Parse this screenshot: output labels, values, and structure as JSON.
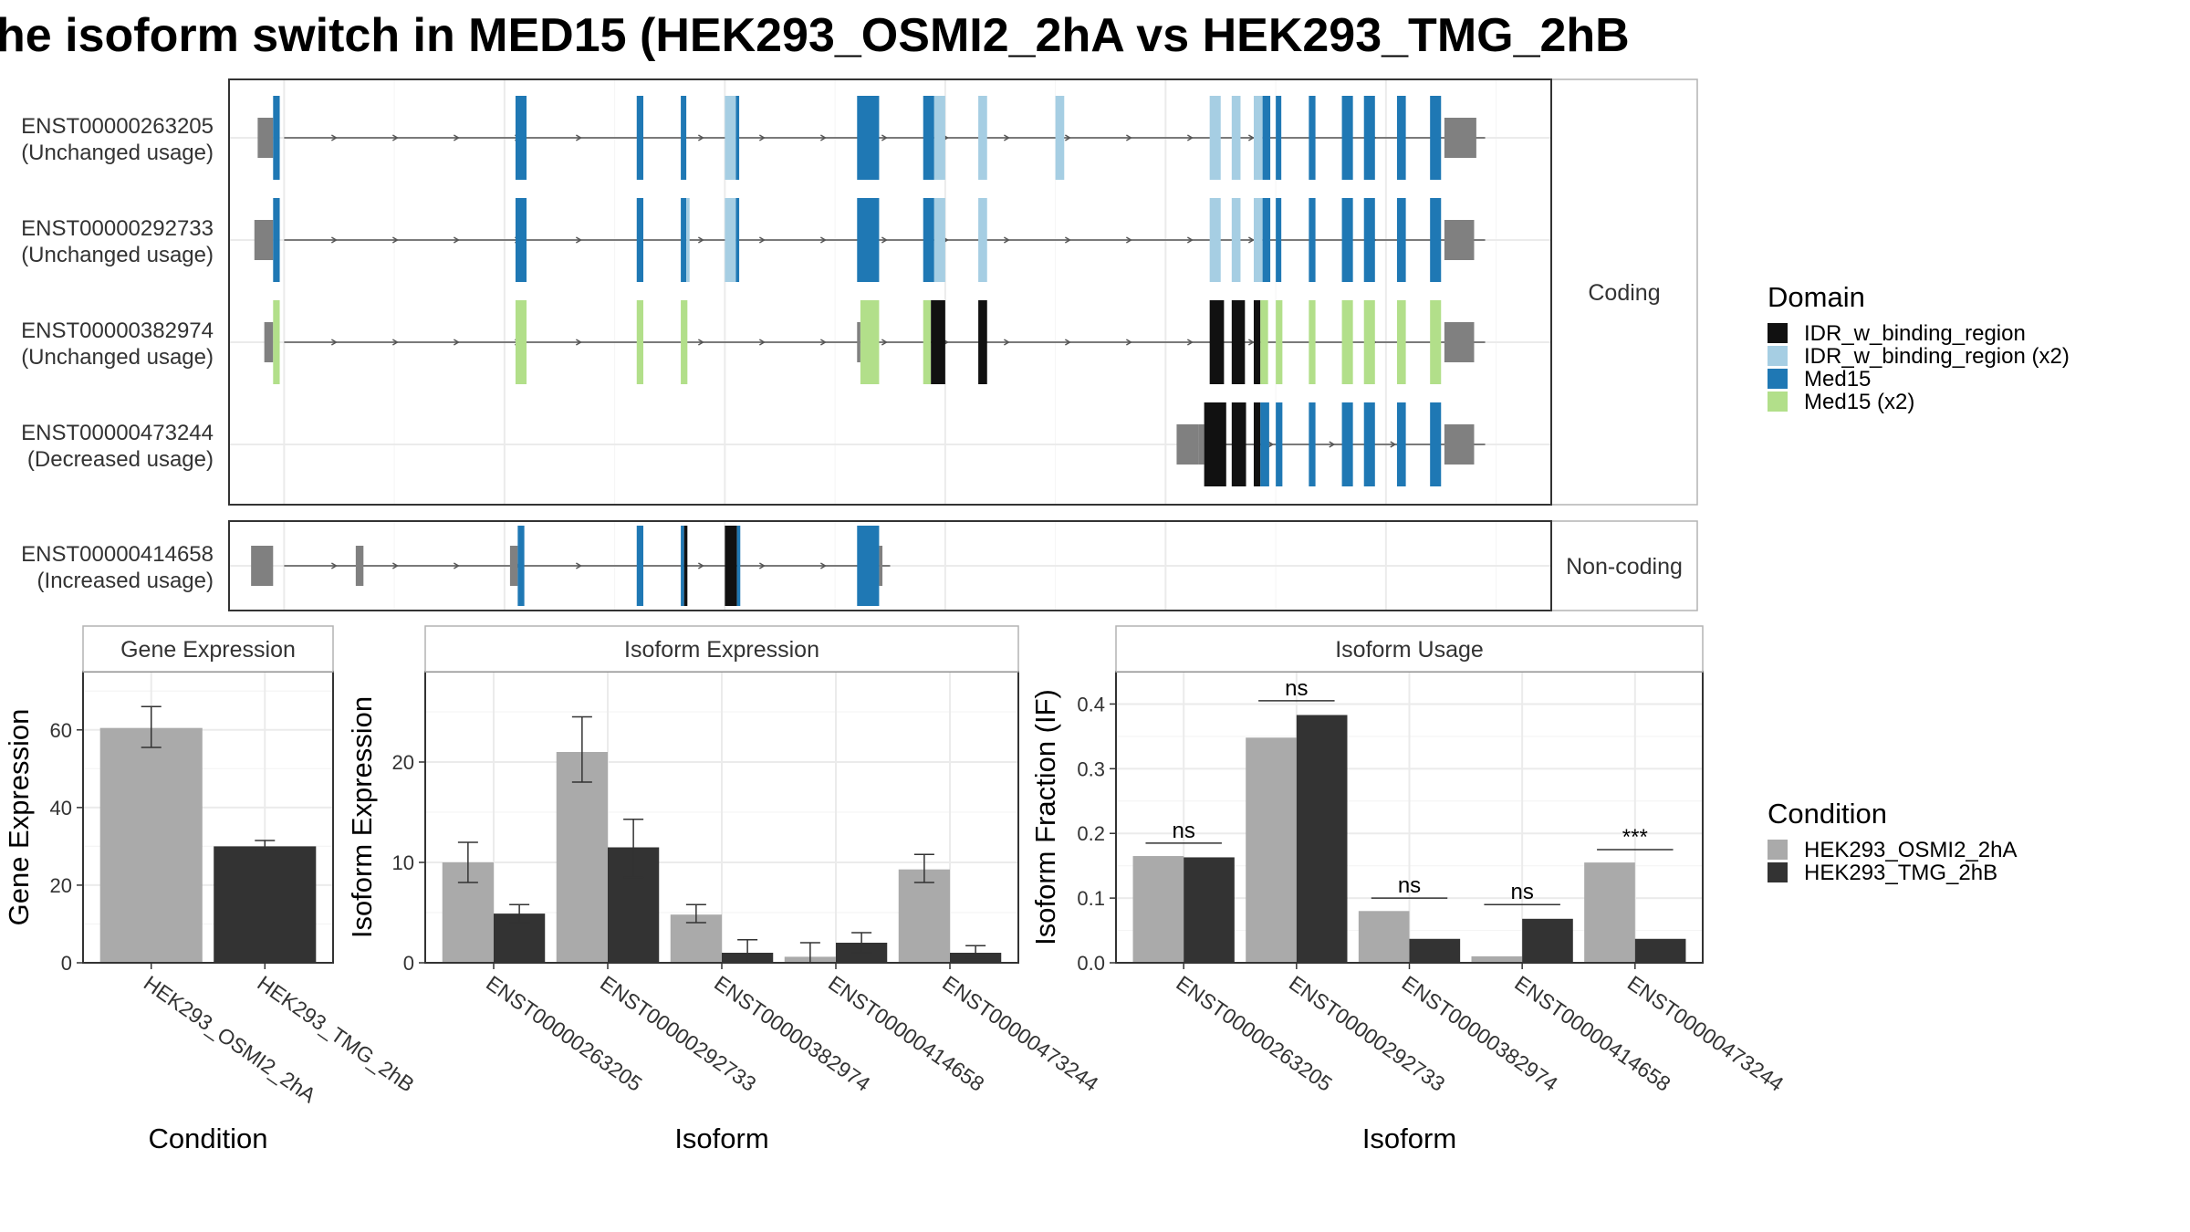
{
  "title": "he isoform switch in MED15 (HEK293_OSMI2_2hA vs HEK293_TMG_2hB",
  "colors": {
    "background": "#ffffff",
    "panel_border": "#333333",
    "strip_border": "#b3b3b3",
    "grid_major": "#ebebeb",
    "grid_minor": "#f5f5f5",
    "text": "#333333",
    "intron": "#555555",
    "utr": "#808080",
    "domain_IDR": "#111111",
    "domain_IDR_x2": "#a6cee3",
    "domain_Med15": "#1f78b4",
    "domain_Med15_x2": "#b2df8a",
    "cond_A": "#aaaaaa",
    "cond_B": "#333333",
    "error_bar": "#333333"
  },
  "structure": {
    "strip_coding": "Coding",
    "strip_noncoding": "Non-coding",
    "coding_transcripts": [
      {
        "id": "ENST00000263205",
        "usage": "(Unchanged usage)",
        "span": [
          3,
          112
        ],
        "utrs": [
          [
            0.6,
            2.0
          ],
          [
            108.3,
            111.2
          ]
        ],
        "exons": [
          [
            2.0,
            2.6,
            "Med15"
          ],
          [
            24.0,
            25.0,
            "Med15"
          ],
          [
            35.0,
            35.6,
            "Med15"
          ],
          [
            39.0,
            39.5,
            "Med15"
          ],
          [
            43.0,
            44.0,
            "IDR_x2"
          ],
          [
            44.0,
            44.3,
            "Med15"
          ],
          [
            55.0,
            57.0,
            "Med15"
          ],
          [
            61.0,
            62.0,
            "Med15"
          ],
          [
            62.0,
            63.0,
            "IDR_x2"
          ],
          [
            66.0,
            66.8,
            "IDR_x2"
          ],
          [
            73.0,
            73.8,
            "IDR_x2"
          ],
          [
            87.0,
            88.0,
            "IDR_x2"
          ],
          [
            89.0,
            89.8,
            "IDR_x2"
          ],
          [
            91.0,
            91.8,
            "IDR_x2"
          ],
          [
            91.8,
            92.5,
            "Med15"
          ],
          [
            93.0,
            93.5,
            "Med15"
          ],
          [
            96.0,
            96.6,
            "Med15"
          ],
          [
            99.0,
            100.0,
            "Med15"
          ],
          [
            101.0,
            102.0,
            "Med15"
          ],
          [
            104.0,
            104.8,
            "Med15"
          ],
          [
            107.0,
            108.0,
            "Med15"
          ]
        ]
      },
      {
        "id": "ENST00000292733",
        "usage": "(Unchanged usage)",
        "span": [
          3,
          112
        ],
        "utrs": [
          [
            0.3,
            2.0
          ],
          [
            108.3,
            111.0
          ]
        ],
        "exons": [
          [
            2.0,
            2.6,
            "Med15"
          ],
          [
            24.0,
            25.0,
            "Med15"
          ],
          [
            35.0,
            35.6,
            "Med15"
          ],
          [
            39.0,
            39.5,
            "Med15"
          ],
          [
            39.5,
            39.8,
            "IDR_x2"
          ],
          [
            43.0,
            44.0,
            "IDR_x2"
          ],
          [
            44.0,
            44.3,
            "Med15"
          ],
          [
            55.0,
            57.0,
            "Med15"
          ],
          [
            61.0,
            62.0,
            "Med15"
          ],
          [
            62.0,
            63.0,
            "IDR_x2"
          ],
          [
            66.0,
            66.8,
            "IDR_x2"
          ],
          [
            87.0,
            88.0,
            "IDR_x2"
          ],
          [
            89.0,
            89.8,
            "IDR_x2"
          ],
          [
            91.0,
            91.8,
            "IDR_x2"
          ],
          [
            91.8,
            92.5,
            "Med15"
          ],
          [
            93.0,
            93.5,
            "Med15"
          ],
          [
            96.0,
            96.6,
            "Med15"
          ],
          [
            99.0,
            100.0,
            "Med15"
          ],
          [
            101.0,
            102.0,
            "Med15"
          ],
          [
            104.0,
            104.8,
            "Med15"
          ],
          [
            107.0,
            108.0,
            "Med15"
          ]
        ]
      },
      {
        "id": "ENST00000382974",
        "usage": "(Unchanged usage)",
        "span": [
          3,
          112
        ],
        "utrs": [
          [
            1.2,
            2.0
          ],
          [
            108.3,
            111.0
          ]
        ],
        "exons": [
          [
            2.0,
            2.6,
            "Med15_x2"
          ],
          [
            24.0,
            25.0,
            "Med15_x2"
          ],
          [
            35.0,
            35.6,
            "Med15_x2"
          ],
          [
            39.0,
            39.6,
            "Med15_x2"
          ],
          [
            55.0,
            55.3,
            "utr"
          ],
          [
            55.3,
            57.0,
            "Med15_x2"
          ],
          [
            61.0,
            61.7,
            "Med15_x2"
          ],
          [
            61.7,
            63.0,
            "IDR"
          ],
          [
            66.0,
            66.8,
            "IDR"
          ],
          [
            87.0,
            88.3,
            "IDR"
          ],
          [
            89.0,
            90.2,
            "IDR"
          ],
          [
            91.0,
            91.6,
            "IDR"
          ],
          [
            91.6,
            92.3,
            "Med15_x2"
          ],
          [
            93.0,
            93.6,
            "Med15_x2"
          ],
          [
            96.0,
            96.6,
            "Med15_x2"
          ],
          [
            99.0,
            100.0,
            "Med15_x2"
          ],
          [
            101.0,
            102.0,
            "Med15_x2"
          ],
          [
            104.0,
            104.8,
            "Med15_x2"
          ],
          [
            107.0,
            108.0,
            "Med15_x2"
          ]
        ]
      },
      {
        "id": "ENST00000473244",
        "usage": "(Decreased usage)",
        "span": [
          88,
          112
        ],
        "utrs": [
          [
            84.0,
            86.0
          ],
          [
            108.3,
            111.0
          ]
        ],
        "exons": [
          [
            86.0,
            86.5,
            "utr"
          ],
          [
            86.5,
            88.5,
            "IDR"
          ],
          [
            89.0,
            90.3,
            "IDR"
          ],
          [
            91.0,
            91.6,
            "IDR"
          ],
          [
            91.6,
            92.4,
            "Med15"
          ],
          [
            93.0,
            93.6,
            "Med15"
          ],
          [
            96.0,
            96.6,
            "Med15"
          ],
          [
            99.0,
            100.0,
            "Med15"
          ],
          [
            101.0,
            102.0,
            "Med15"
          ],
          [
            104.0,
            104.8,
            "Med15"
          ],
          [
            107.0,
            108.0,
            "Med15"
          ]
        ]
      }
    ],
    "noncoding_transcripts": [
      {
        "id": "ENST00000414658",
        "usage": "(Increased usage)",
        "span": [
          3,
          58
        ],
        "utrs": [
          [
            0.0,
            2.0
          ],
          [
            9.5,
            10.2
          ],
          [
            23.5,
            24.2
          ],
          [
            57.0,
            57.3
          ]
        ],
        "exons": [
          [
            24.2,
            24.8,
            "Med15"
          ],
          [
            35.0,
            35.6,
            "Med15"
          ],
          [
            39.0,
            39.3,
            "Med15"
          ],
          [
            39.3,
            39.6,
            "IDR"
          ],
          [
            43.0,
            44.1,
            "IDR"
          ],
          [
            44.1,
            44.4,
            "Med15"
          ],
          [
            55.0,
            57.0,
            "Med15"
          ]
        ]
      }
    ]
  },
  "legend_domain": {
    "title": "Domain",
    "items": [
      {
        "label": "IDR_w_binding_region",
        "color": "#111111"
      },
      {
        "label": "IDR_w_binding_region (x2)",
        "color": "#a6cee3"
      },
      {
        "label": "Med15",
        "color": "#1f78b4"
      },
      {
        "label": "Med15 (x2)",
        "color": "#b2df8a"
      }
    ]
  },
  "legend_condition": {
    "title": "Condition",
    "items": [
      {
        "label": "HEK293_OSMI2_2hA",
        "color": "#aaaaaa"
      },
      {
        "label": "HEK293_TMG_2hB",
        "color": "#333333"
      }
    ]
  },
  "chart_data": [
    {
      "type": "bar",
      "title": "Gene Expression",
      "xlabel": "Condition",
      "ylabel": "Gene Expression",
      "ylim": [
        0,
        75
      ],
      "yticks": [
        0,
        20,
        40,
        60
      ],
      "categories": [
        "HEK293_OSMI2_2hA",
        "HEK293_TMG_2hB"
      ],
      "values": [
        60.5,
        30.0
      ],
      "error": [
        [
          55.5,
          66.0
        ],
        [
          29.0,
          31.5
        ]
      ]
    },
    {
      "type": "bar",
      "title": "Isoform Expression",
      "xlabel": "Isoform",
      "ylabel": "Isoform Expression",
      "ylim": [
        0,
        29
      ],
      "yticks": [
        0,
        10,
        20
      ],
      "categories": [
        "ENST00000263205",
        "ENST00000292733",
        "ENST00000382974",
        "ENST00000414658",
        "ENST00000473244"
      ],
      "series": [
        {
          "name": "HEK293_OSMI2_2hA",
          "values": [
            10.0,
            21.0,
            4.8,
            0.6,
            9.3
          ],
          "error": [
            [
              8.0,
              12.0
            ],
            [
              18.0,
              24.5
            ],
            [
              4.0,
              5.8
            ],
            [
              0.0,
              2.0
            ],
            [
              8.0,
              10.8
            ]
          ]
        },
        {
          "name": "HEK293_TMG_2hB",
          "values": [
            4.9,
            11.5,
            1.0,
            2.0,
            1.0
          ],
          "error": [
            [
              4.0,
              5.8
            ],
            [
              8.5,
              14.3
            ],
            [
              0.0,
              2.3
            ],
            [
              1.0,
              3.0
            ],
            [
              0.5,
              1.7
            ]
          ]
        }
      ]
    },
    {
      "type": "bar",
      "title": "Isoform Usage",
      "xlabel": "Isoform",
      "ylabel": "Isoform Fraction (IF)",
      "ylim": [
        0,
        0.45
      ],
      "yticks": [
        "0.0",
        "0.1",
        "0.2",
        "0.3",
        "0.4"
      ],
      "categories": [
        "ENST00000263205",
        "ENST00000292733",
        "ENST00000382974",
        "ENST00000414658",
        "ENST00000473244"
      ],
      "series": [
        {
          "name": "HEK293_OSMI2_2hA",
          "values": [
            0.165,
            0.348,
            0.08,
            0.01,
            0.155
          ]
        },
        {
          "name": "HEK293_TMG_2hB",
          "values": [
            0.163,
            0.383,
            0.037,
            0.068,
            0.037
          ]
        }
      ],
      "significance": [
        "ns",
        "ns",
        "ns",
        "ns",
        "***"
      ],
      "significance_y": [
        0.185,
        0.405,
        0.1,
        0.09,
        0.175
      ]
    }
  ]
}
